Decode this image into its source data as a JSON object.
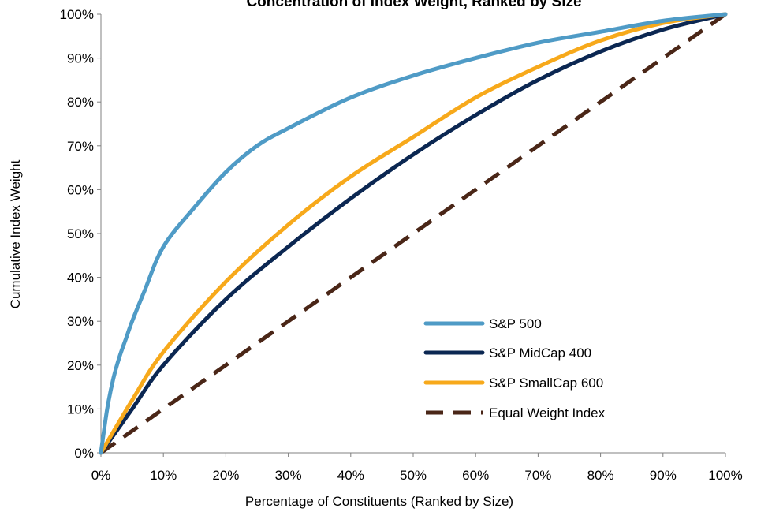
{
  "chart_data": {
    "type": "line",
    "title": "Concentration of Index Weight, Ranked by Size",
    "xlabel": "Percentage of Constituents (Ranked by Size)",
    "ylabel": "Cumulative Index Weight",
    "xlim": [
      0,
      100
    ],
    "ylim": [
      0,
      100
    ],
    "x_ticks": [
      "0%",
      "10%",
      "20%",
      "30%",
      "40%",
      "50%",
      "60%",
      "70%",
      "80%",
      "90%",
      "100%"
    ],
    "y_ticks": [
      "0%",
      "10%",
      "20%",
      "30%",
      "40%",
      "50%",
      "60%",
      "70%",
      "80%",
      "90%",
      "100%"
    ],
    "x_tick_values": [
      0,
      10,
      20,
      30,
      40,
      50,
      60,
      70,
      80,
      90,
      100
    ],
    "y_tick_values": [
      0,
      10,
      20,
      30,
      40,
      50,
      60,
      70,
      80,
      90,
      100
    ],
    "grid": false,
    "legend_position": "bottom-right",
    "series": [
      {
        "name": "S&P 500",
        "color": "#4f9bc6",
        "style": "solid",
        "points": [
          [
            0,
            0
          ],
          [
            1,
            10
          ],
          [
            2,
            17
          ],
          [
            3,
            22
          ],
          [
            4,
            26
          ],
          [
            5,
            30
          ],
          [
            7,
            37
          ],
          [
            10,
            47
          ],
          [
            15,
            56
          ],
          [
            20,
            64
          ],
          [
            25,
            70
          ],
          [
            30,
            74
          ],
          [
            40,
            81
          ],
          [
            50,
            86
          ],
          [
            60,
            90
          ],
          [
            70,
            93.5
          ],
          [
            80,
            96
          ],
          [
            90,
            98.5
          ],
          [
            100,
            100
          ]
        ]
      },
      {
        "name": "S&P MidCap 400",
        "color": "#0b2752",
        "style": "solid",
        "points": [
          [
            0,
            0
          ],
          [
            5,
            10
          ],
          [
            10,
            20
          ],
          [
            20,
            35
          ],
          [
            30,
            47
          ],
          [
            40,
            58
          ],
          [
            50,
            68
          ],
          [
            60,
            77
          ],
          [
            70,
            85
          ],
          [
            80,
            91.5
          ],
          [
            90,
            96.5
          ],
          [
            100,
            100
          ]
        ]
      },
      {
        "name": "S&P SmallCap 600",
        "color": "#f7a91b",
        "style": "solid",
        "points": [
          [
            0,
            0
          ],
          [
            5,
            12
          ],
          [
            10,
            23
          ],
          [
            20,
            39
          ],
          [
            30,
            52
          ],
          [
            40,
            63
          ],
          [
            50,
            72
          ],
          [
            60,
            81
          ],
          [
            70,
            88
          ],
          [
            80,
            94
          ],
          [
            90,
            98
          ],
          [
            100,
            100
          ]
        ]
      },
      {
        "name": "Equal Weight Index",
        "color": "#4a2617",
        "style": "dashed",
        "points": [
          [
            0,
            0
          ],
          [
            100,
            100
          ]
        ]
      }
    ]
  }
}
